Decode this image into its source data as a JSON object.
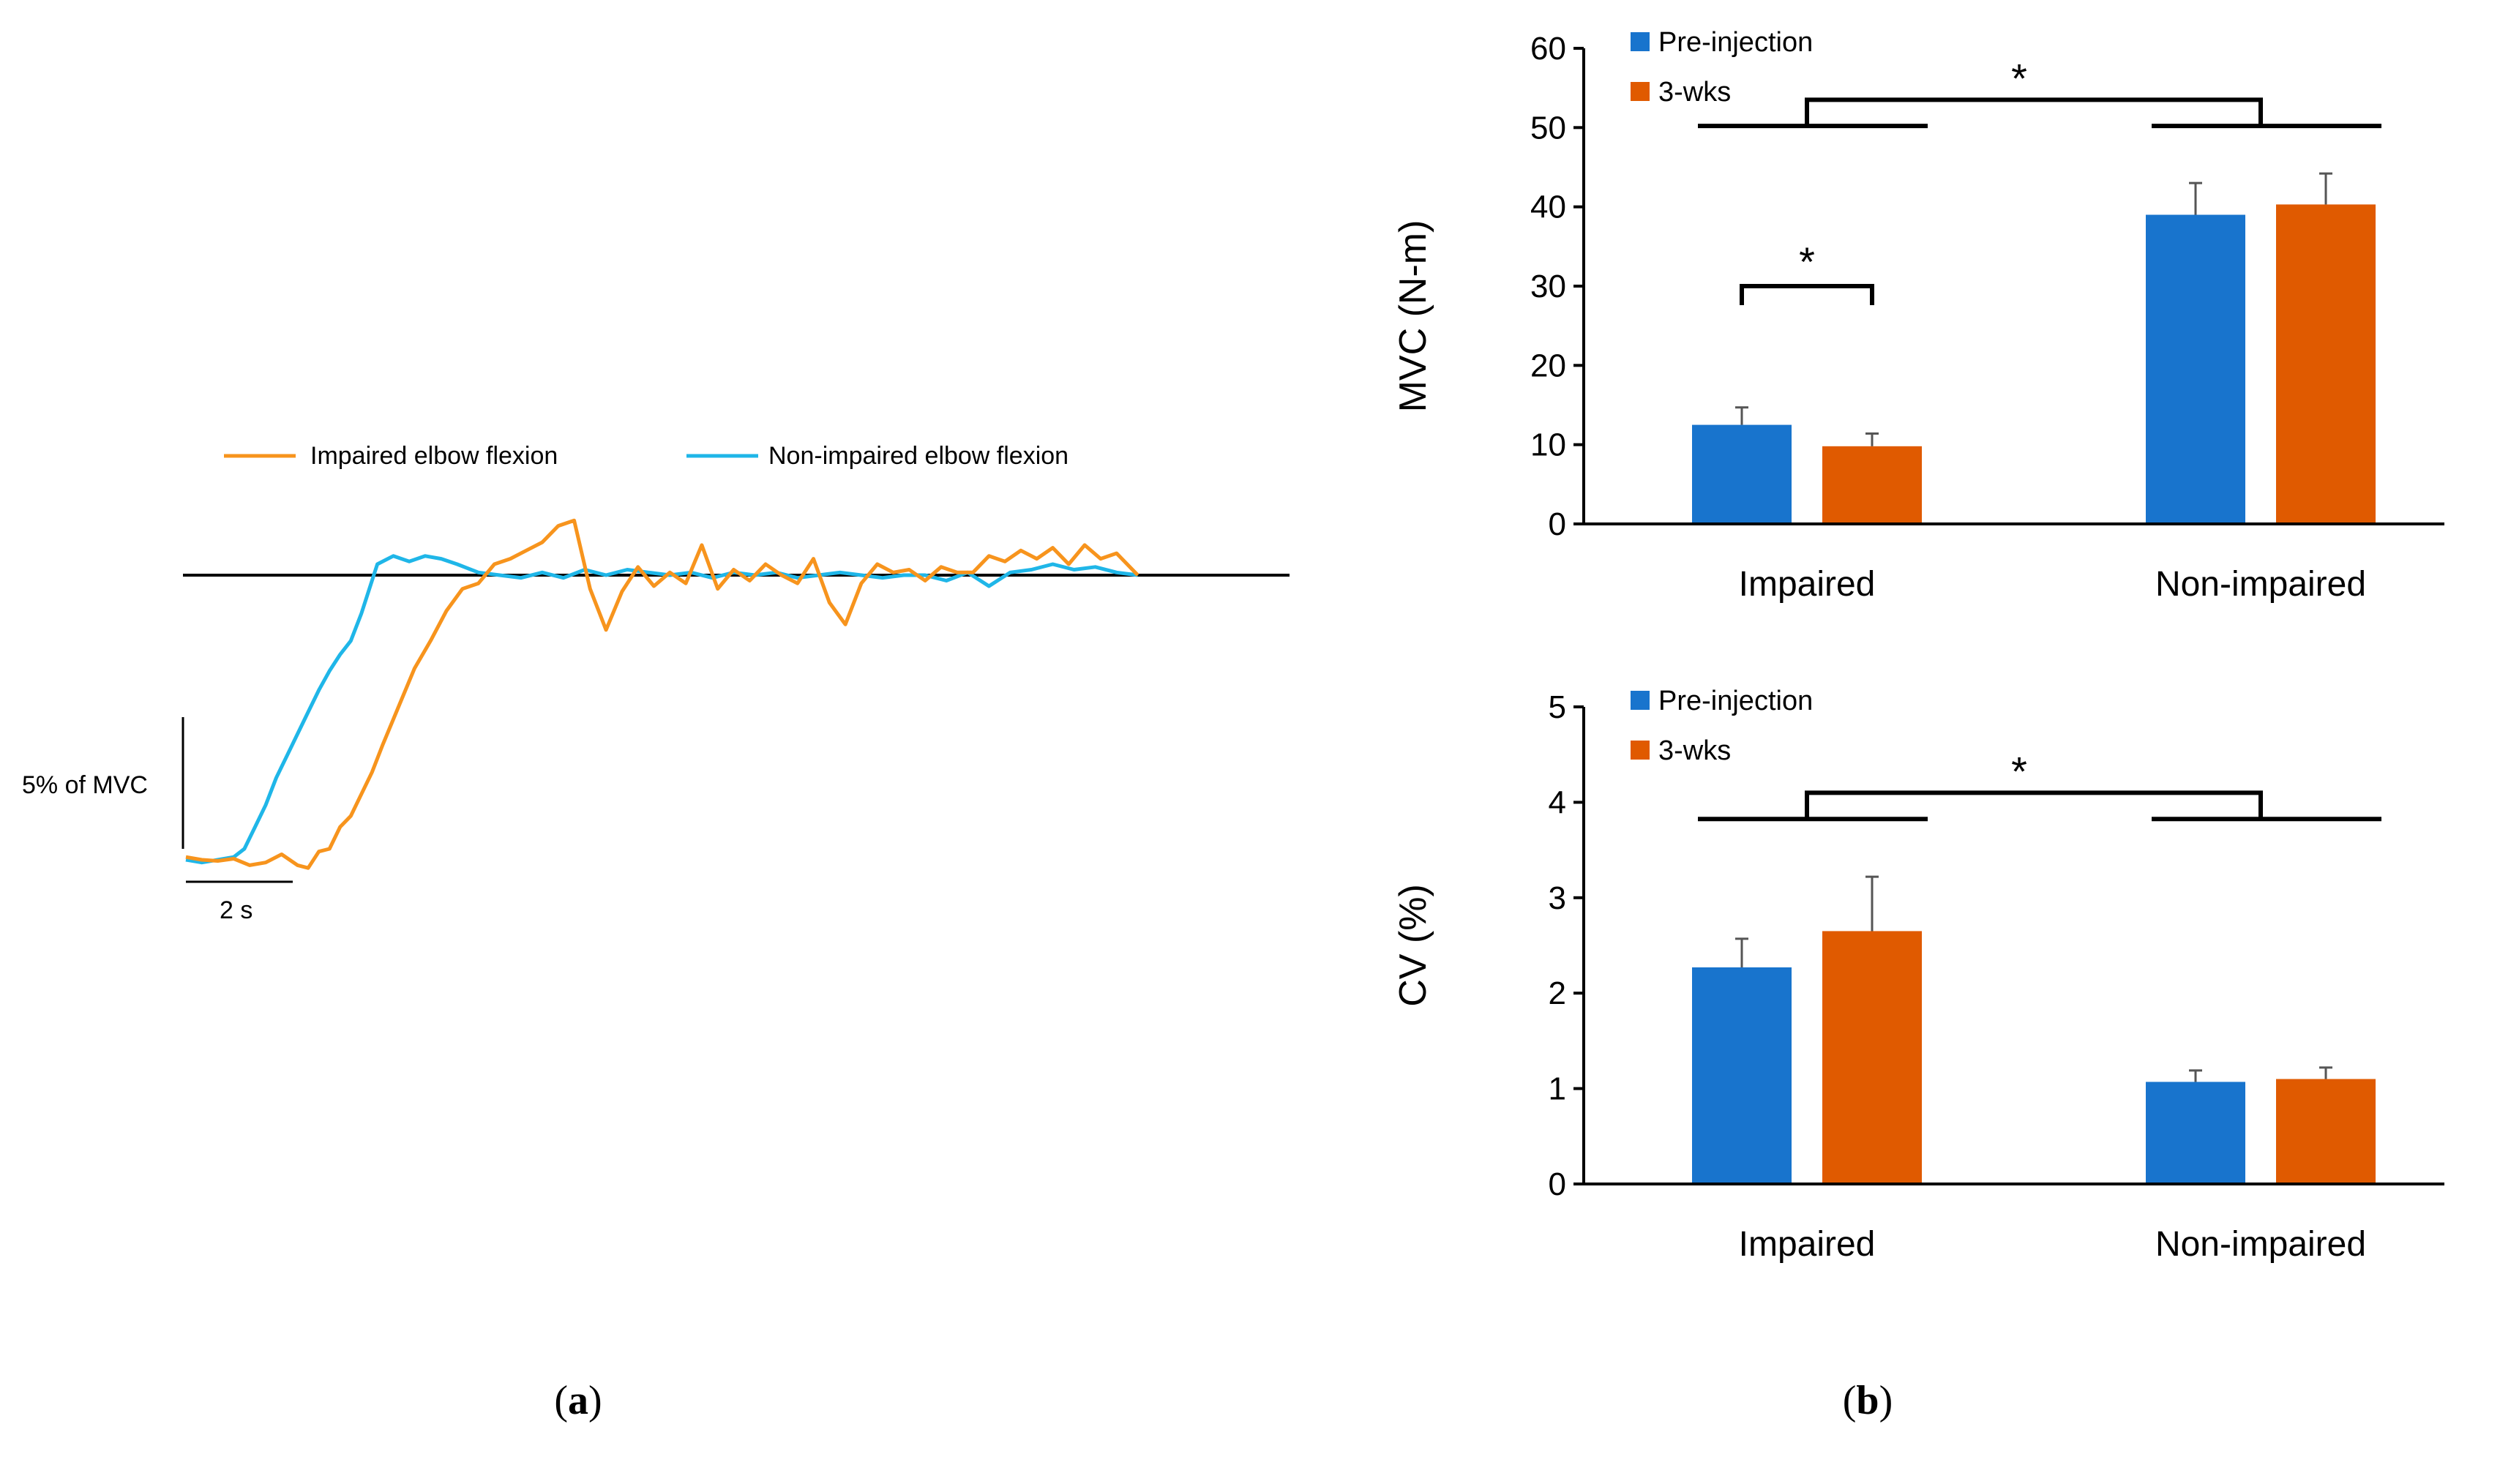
{
  "chart_data": [
    {
      "id": "a",
      "type": "line",
      "panel_label": {
        "open": "(",
        "letter": "a",
        "close": ")"
      },
      "legend": [
        {
          "name": "Impaired elbow flexion",
          "color": "#f7941d"
        },
        {
          "name": "Non-impaired elbow flexion",
          "color": "#1fb6e8"
        }
      ],
      "scale_bars": {
        "y_label": "5% of MVC",
        "x_label": "2 s"
      },
      "x_range": [
        0,
        18
      ],
      "y_range": [
        -5.2,
        1.0
      ],
      "series": [
        {
          "name": "Impaired elbow flexion",
          "color": "#f7941d",
          "x": [
            0,
            0.3,
            0.6,
            0.9,
            1.2,
            1.5,
            1.8,
            2.1,
            2.3,
            2.5,
            2.7,
            2.9,
            3.1,
            3.3,
            3.5,
            3.7,
            4.0,
            4.3,
            4.6,
            4.9,
            5.2,
            5.5,
            5.8,
            6.1,
            6.4,
            6.7,
            7.0,
            7.3,
            7.6,
            7.9,
            8.2,
            8.5,
            8.8,
            9.1,
            9.4,
            9.7,
            10.0,
            10.3,
            10.6,
            10.9,
            11.2,
            11.5,
            11.8,
            12.1,
            12.4,
            12.7,
            13.0,
            13.3,
            13.6,
            13.9,
            14.2,
            14.5,
            14.8,
            15.1,
            15.4,
            15.7,
            16.0,
            16.3,
            16.6,
            16.9,
            17.2,
            17.5,
            17.9
          ],
          "y": [
            -5.15,
            -5.2,
            -5.22,
            -5.18,
            -5.3,
            -5.25,
            -5.1,
            -5.3,
            -5.35,
            -5.05,
            -5.0,
            -4.6,
            -4.4,
            -4.0,
            -3.6,
            -3.1,
            -2.4,
            -1.7,
            -1.2,
            -0.65,
            -0.25,
            -0.15,
            0.2,
            0.3,
            0.45,
            0.6,
            0.9,
            1.0,
            -0.25,
            -1.0,
            -0.3,
            0.15,
            -0.2,
            0.05,
            -0.15,
            0.55,
            -0.25,
            0.1,
            -0.1,
            0.2,
            0.0,
            -0.15,
            0.3,
            -0.5,
            -0.9,
            -0.15,
            0.2,
            0.05,
            0.1,
            -0.1,
            0.15,
            0.05,
            0.05,
            0.35,
            0.25,
            0.45,
            0.3,
            0.5,
            0.2,
            0.55,
            0.3,
            0.4,
            0.0
          ]
        },
        {
          "name": "Non-impaired elbow flexion",
          "color": "#1fb6e8",
          "x": [
            0,
            0.3,
            0.6,
            0.9,
            1.1,
            1.3,
            1.5,
            1.7,
            1.9,
            2.1,
            2.3,
            2.5,
            2.7,
            2.9,
            3.1,
            3.3,
            3.6,
            3.9,
            4.2,
            4.5,
            4.8,
            5.1,
            5.5,
            5.9,
            6.3,
            6.7,
            7.1,
            7.5,
            7.9,
            8.3,
            8.7,
            9.1,
            9.5,
            9.9,
            10.3,
            10.7,
            11.1,
            11.5,
            11.9,
            12.3,
            12.7,
            13.1,
            13.5,
            13.9,
            14.3,
            14.7,
            15.1,
            15.5,
            15.9,
            16.3,
            16.7,
            17.1,
            17.5,
            17.9
          ],
          "y": [
            -5.2,
            -5.25,
            -5.2,
            -5.15,
            -5.0,
            -4.6,
            -4.2,
            -3.7,
            -3.3,
            -2.9,
            -2.5,
            -2.1,
            -1.75,
            -1.45,
            -1.2,
            -0.7,
            0.2,
            0.35,
            0.25,
            0.35,
            0.3,
            0.2,
            0.05,
            0.0,
            -0.05,
            0.05,
            -0.05,
            0.1,
            0.0,
            0.1,
            0.05,
            0.0,
            0.05,
            -0.05,
            0.05,
            0.0,
            0.05,
            -0.05,
            0.0,
            0.05,
            0.0,
            -0.05,
            0.0,
            0.0,
            -0.1,
            0.05,
            -0.2,
            0.05,
            0.1,
            0.2,
            0.1,
            0.15,
            0.05,
            0.0
          ]
        }
      ]
    },
    {
      "id": "b-top",
      "type": "bar",
      "ylabel": "MVC (N-m)",
      "ylim": [
        0,
        60
      ],
      "yticks": [
        "0",
        "10",
        "20",
        "30",
        "40",
        "50",
        "60"
      ],
      "categories": [
        "Impaired",
        "Non-impaired"
      ],
      "series": [
        {
          "name": "Pre-injection",
          "color": "#1874cd",
          "values": [
            12.5,
            39.0
          ],
          "errors": [
            2.2,
            4.0
          ]
        },
        {
          "name": "3-wks",
          "color": "#e05a00",
          "values": [
            9.8,
            40.3
          ],
          "errors": [
            1.6,
            3.9
          ]
        }
      ],
      "annotations": [
        {
          "text": "*",
          "between": "Impaired vs Non-impaired",
          "level": 53.5
        },
        {
          "text": "*",
          "between": "Impaired: Pre-injection vs 3-wks",
          "level": 30
        }
      ]
    },
    {
      "id": "b-bottom",
      "type": "bar",
      "ylabel": "CV (%)",
      "ylim": [
        0,
        5
      ],
      "yticks": [
        "0",
        "1",
        "2",
        "3",
        "4",
        "5"
      ],
      "categories": [
        "Impaired",
        "Non-impaired"
      ],
      "series": [
        {
          "name": "Pre-injection",
          "color": "#1874cd",
          "values": [
            2.27,
            1.07
          ],
          "errors": [
            0.3,
            0.12
          ]
        },
        {
          "name": "3-wks",
          "color": "#e05a00",
          "values": [
            2.65,
            1.1
          ],
          "errors": [
            0.57,
            0.12
          ]
        }
      ],
      "annotations": [
        {
          "text": "*",
          "between": "Impaired vs Non-impaired",
          "level": 4.1
        }
      ]
    }
  ],
  "panel_b_label": {
    "open": "(",
    "letter": "b",
    "close": ")"
  }
}
